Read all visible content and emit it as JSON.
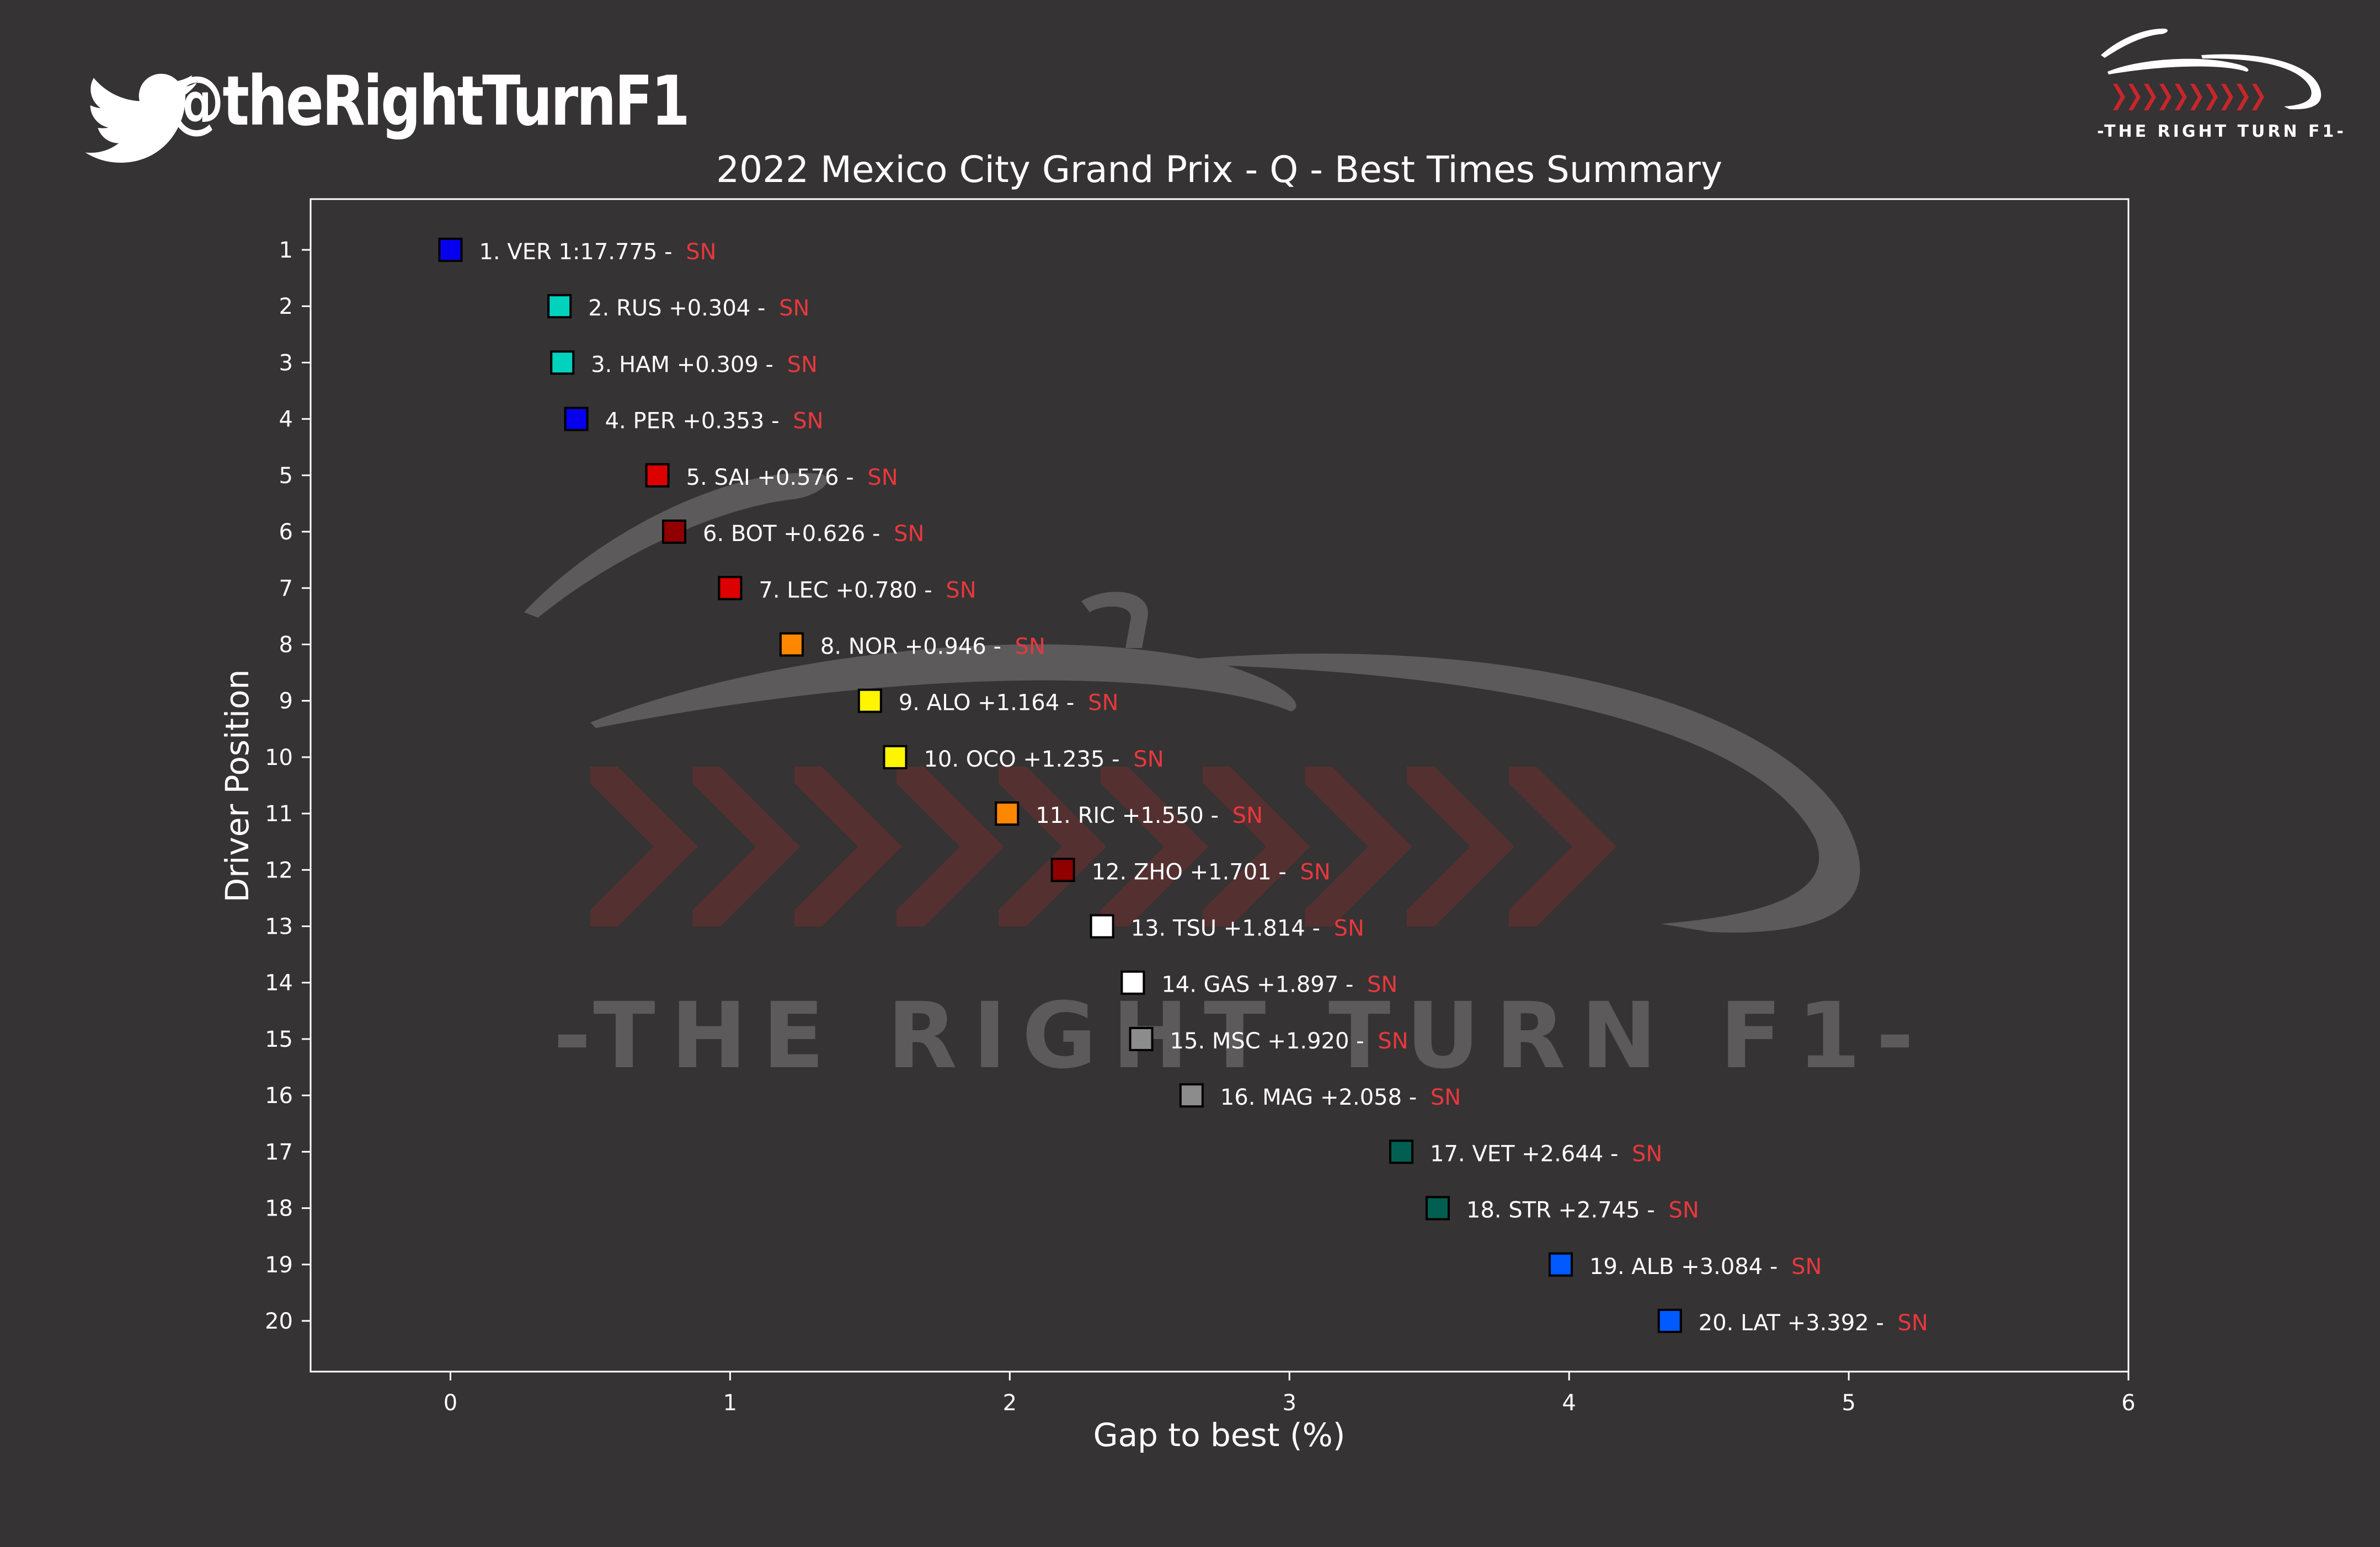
{
  "branding": {
    "handle": "@theRightTurnF1",
    "logo_text": "-THE RIGHT TURN F1-",
    "watermark_text": "-THE RIGHT TURN F1-",
    "icon": "twitter-bird-icon"
  },
  "chart_data": {
    "type": "scatter",
    "title": "2022 Mexico City Grand Prix - Q - Best Times Summary",
    "xlabel": "Gap to best (%)",
    "ylabel": "Driver Position",
    "xlim": [
      -0.5,
      6
    ],
    "ylim": [
      20.9,
      0.1
    ],
    "xticks": [
      0,
      1,
      2,
      3,
      4,
      5,
      6
    ],
    "yticks": [
      1,
      2,
      3,
      4,
      5,
      6,
      7,
      8,
      9,
      10,
      11,
      12,
      13,
      14,
      15,
      16,
      17,
      18,
      19,
      20
    ],
    "grid": false,
    "points": [
      {
        "pos": 1,
        "x": 0.0,
        "label": "1. VER 1:17.775 - ",
        "tyre": "SN",
        "color": "#0600ef"
      },
      {
        "pos": 2,
        "x": 0.39,
        "label": "2. RUS +0.304 - ",
        "tyre": "SN",
        "color": "#00d2be"
      },
      {
        "pos": 3,
        "x": 0.4,
        "label": "3. HAM +0.309 - ",
        "tyre": "SN",
        "color": "#00d2be"
      },
      {
        "pos": 4,
        "x": 0.45,
        "label": "4. PER +0.353 - ",
        "tyre": "SN",
        "color": "#0600ef"
      },
      {
        "pos": 5,
        "x": 0.74,
        "label": "5. SAI +0.576 - ",
        "tyre": "SN",
        "color": "#dc0000"
      },
      {
        "pos": 6,
        "x": 0.8,
        "label": "6. BOT +0.626 - ",
        "tyre": "SN",
        "color": "#900000"
      },
      {
        "pos": 7,
        "x": 1.0,
        "label": "7. LEC +0.780 - ",
        "tyre": "SN",
        "color": "#dc0000"
      },
      {
        "pos": 8,
        "x": 1.22,
        "label": "8. NOR +0.946 - ",
        "tyre": "SN",
        "color": "#ff8700"
      },
      {
        "pos": 9,
        "x": 1.5,
        "label": "9. ALO +1.164 - ",
        "tyre": "SN",
        "color": "#fff500"
      },
      {
        "pos": 10,
        "x": 1.59,
        "label": "10. OCO +1.235 - ",
        "tyre": "SN",
        "color": "#fff500"
      },
      {
        "pos": 11,
        "x": 1.99,
        "label": "11. RIC +1.550 - ",
        "tyre": "SN",
        "color": "#ff8700"
      },
      {
        "pos": 12,
        "x": 2.19,
        "label": "12. ZHO +1.701 - ",
        "tyre": "SN",
        "color": "#900000"
      },
      {
        "pos": 13,
        "x": 2.33,
        "label": "13. TSU +1.814 - ",
        "tyre": "SN",
        "color": "#ffffff"
      },
      {
        "pos": 14,
        "x": 2.44,
        "label": "14. GAS +1.897 - ",
        "tyre": "SN",
        "color": "#ffffff"
      },
      {
        "pos": 15,
        "x": 2.47,
        "label": "15. MSC +1.920 - ",
        "tyre": "SN",
        "color": "#8c8c8c"
      },
      {
        "pos": 16,
        "x": 2.65,
        "label": "16. MAG +2.058 - ",
        "tyre": "SN",
        "color": "#8c8c8c"
      },
      {
        "pos": 17,
        "x": 3.4,
        "label": "17. VET +2.644 - ",
        "tyre": "SN",
        "color": "#005f50"
      },
      {
        "pos": 18,
        "x": 3.53,
        "label": "18. STR +2.745 - ",
        "tyre": "SN",
        "color": "#005f50"
      },
      {
        "pos": 19,
        "x": 3.97,
        "label": "19. ALB +3.084 - ",
        "tyre": "SN",
        "color": "#005aff"
      },
      {
        "pos": 20,
        "x": 4.36,
        "label": "20. LAT +3.392 - ",
        "tyre": "SN",
        "color": "#005aff"
      }
    ],
    "tyre_label_color": "#e8383d",
    "text_color": "#ffffff"
  }
}
